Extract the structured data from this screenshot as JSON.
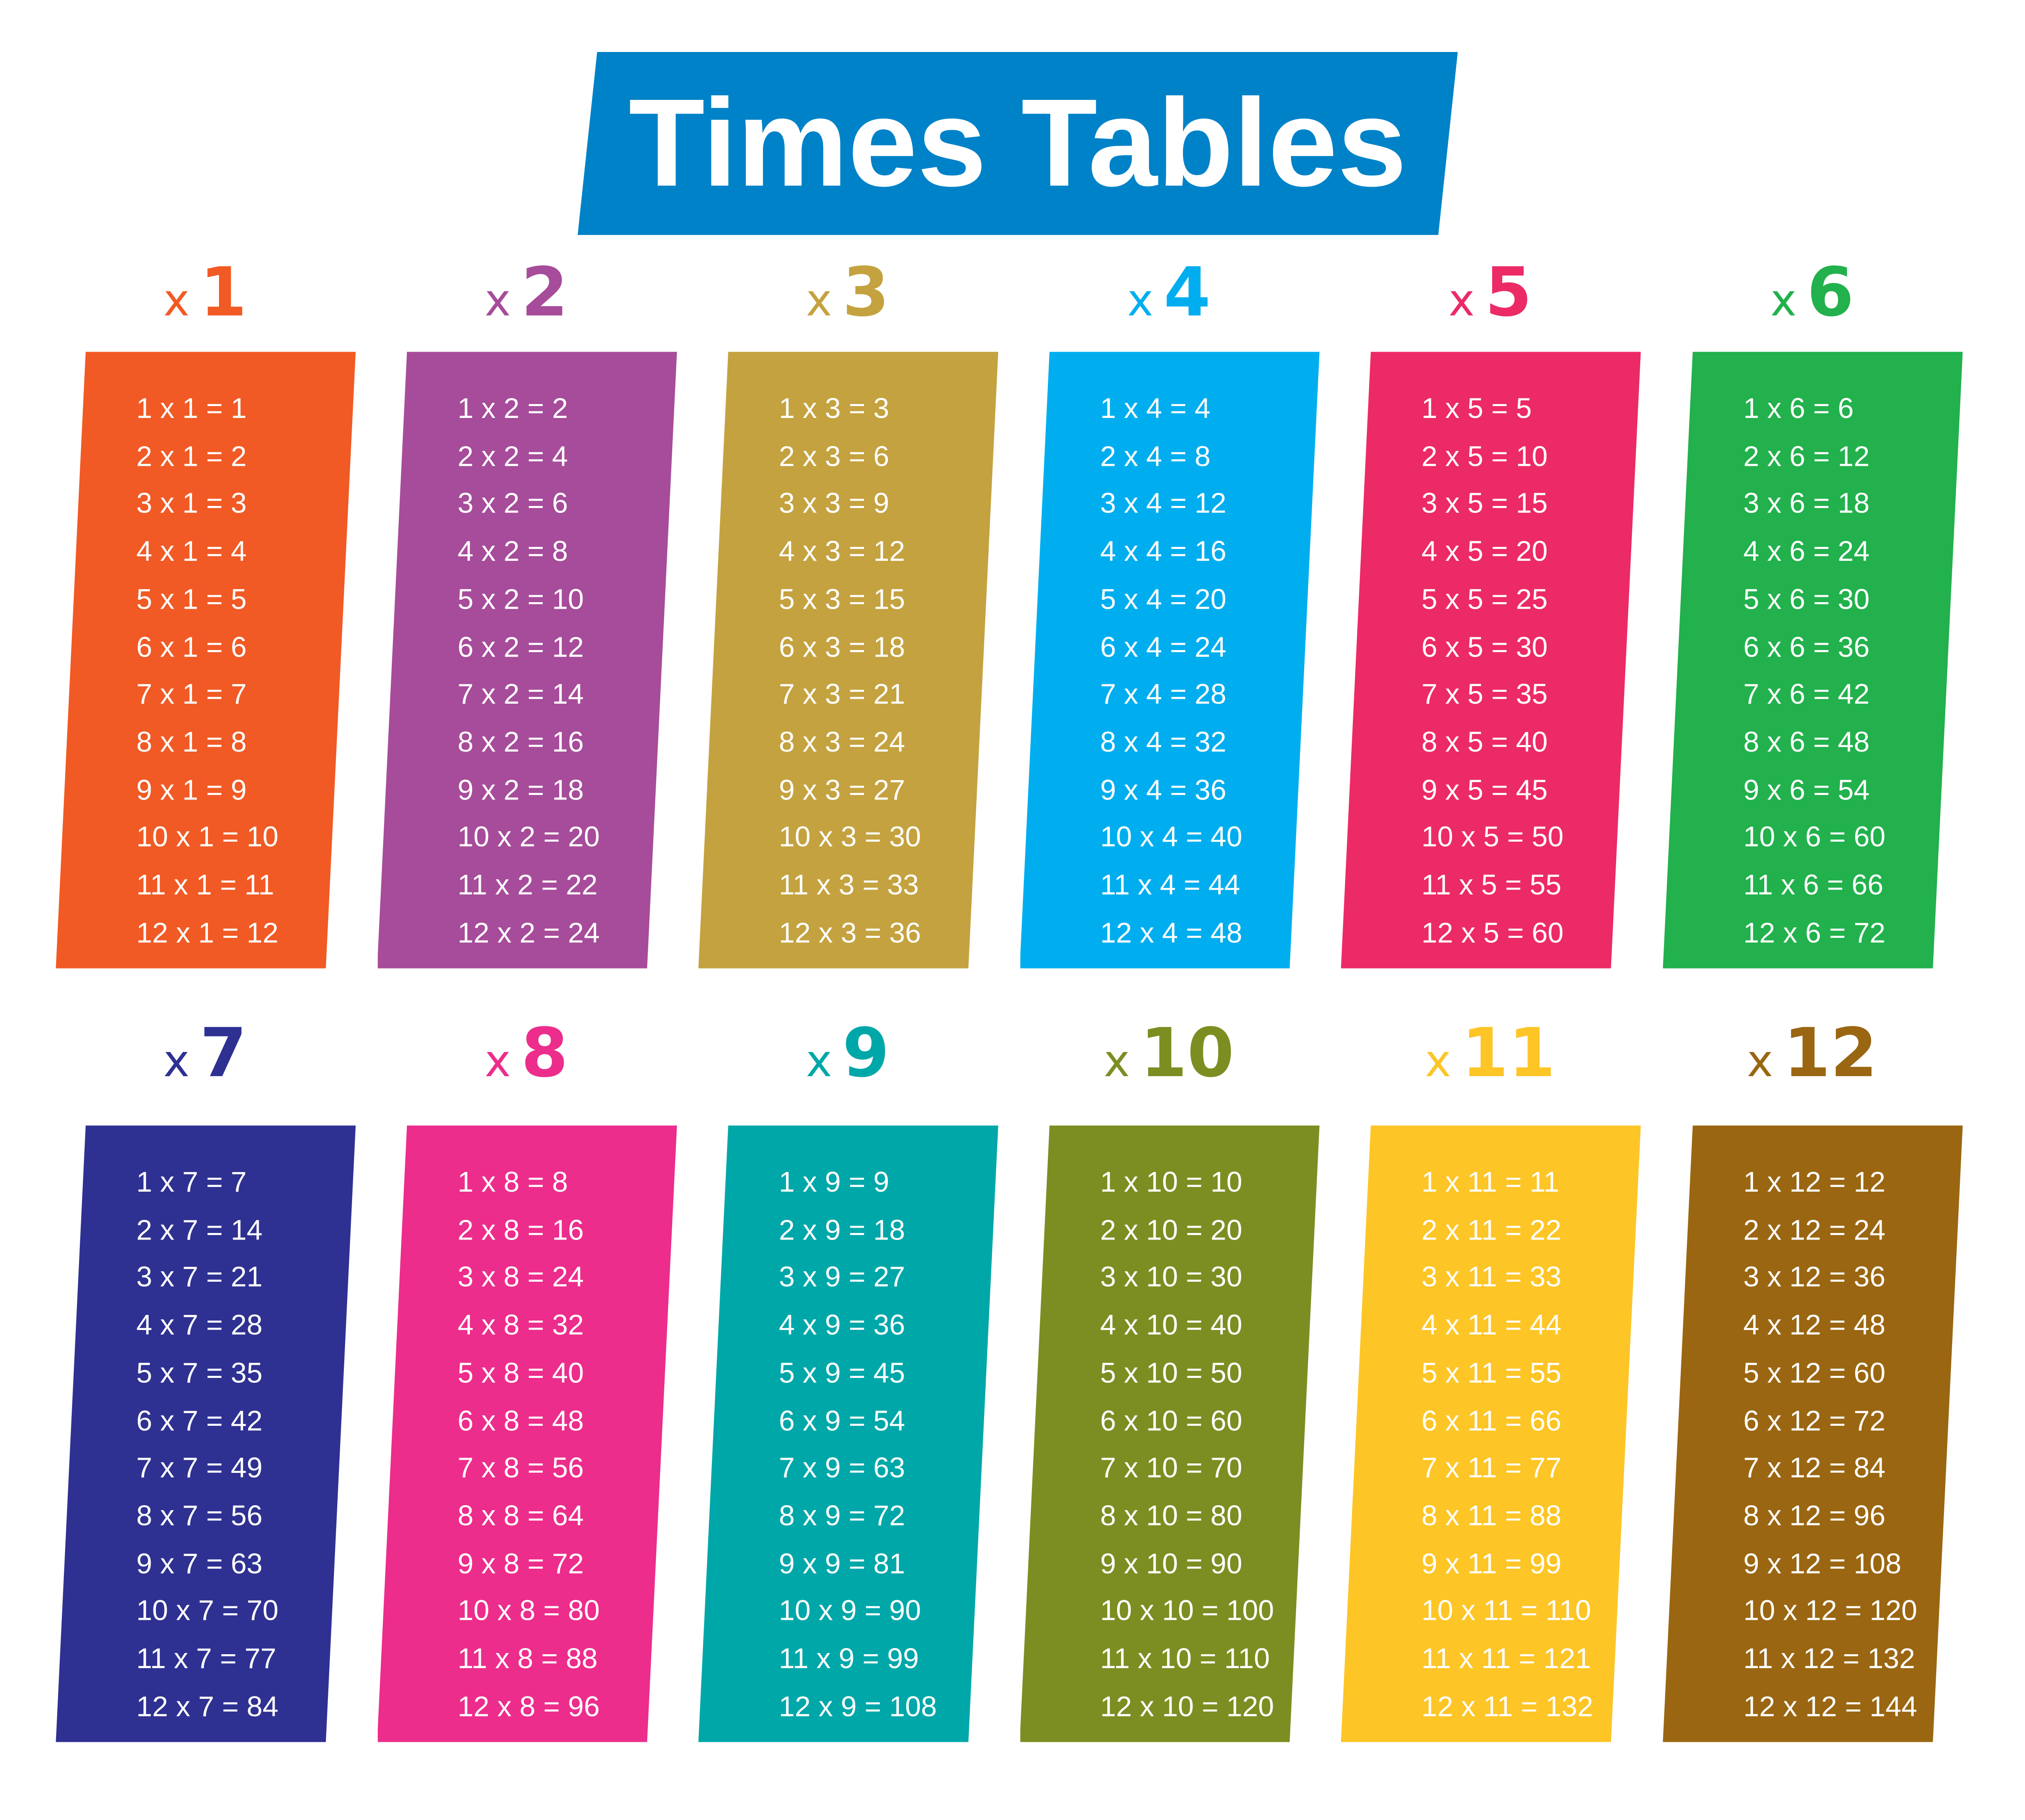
{
  "title": "Times Tables",
  "banner_color": "#0082C8",
  "tables": [
    {
      "x": "x",
      "n": "1",
      "color": "#F15A24",
      "rows": [
        "1 x 1 = 1",
        "2 x 1 = 2",
        "3 x 1 = 3",
        "4 x 1 = 4",
        "5 x 1 = 5",
        "6 x 1 = 6",
        "7 x 1 = 7",
        "8 x 1 = 8",
        "9 x 1 = 9",
        "10 x 1 = 10",
        "11 x 1 = 11",
        "12 x 1 = 12"
      ]
    },
    {
      "x": "x",
      "n": "2",
      "color": "#A64C9A",
      "rows": [
        "1 x 2 = 2",
        "2 x 2 = 4",
        "3 x 2 = 6",
        "4 x 2 = 8",
        "5 x 2 = 10",
        "6 x 2 = 12",
        "7 x 2 = 14",
        "8 x 2 = 16",
        "9 x 2 = 18",
        "10 x 2 = 20",
        "11 x 2 = 22",
        "12 x 2 = 24"
      ]
    },
    {
      "x": "x",
      "n": "3",
      "color": "#C4A23F",
      "rows": [
        "1 x 3 = 3",
        "2 x 3 = 6",
        "3 x 3 = 9",
        "4 x 3 = 12",
        "5 x 3 = 15",
        "6 x 3 = 18",
        "7 x 3 = 21",
        "8 x 3 = 24",
        "9 x 3 = 27",
        "10 x 3 = 30",
        "11 x 3 = 33",
        "12 x 3 = 36"
      ]
    },
    {
      "x": "x",
      "n": "4",
      "color": "#00AEEF",
      "rows": [
        "1 x 4 = 4",
        "2 x 4 = 8",
        "3 x 4 = 12",
        "4 x 4 = 16",
        "5 x 4 = 20",
        "6 x 4 = 24",
        "7 x 4 = 28",
        "8 x 4 = 32",
        "9 x 4 = 36",
        "10 x 4 = 40",
        "11 x 4 = 44",
        "12 x 4 = 48"
      ]
    },
    {
      "x": "x",
      "n": "5",
      "color": "#EC2A66",
      "rows": [
        "1 x 5 = 5",
        "2 x 5 = 10",
        "3 x 5 = 15",
        "4 x 5 = 20",
        "5 x 5 = 25",
        "6 x 5 = 30",
        "7 x 5 = 35",
        "8 x 5 = 40",
        "9 x 5 = 45",
        "10 x 5 = 50",
        "11 x 5 = 55",
        "12 x 5 = 60"
      ]
    },
    {
      "x": "x",
      "n": "6",
      "color": "#22B14C",
      "rows": [
        "1 x 6 = 6",
        "2 x 6 = 12",
        "3 x 6 = 18",
        "4 x 6 = 24",
        "5 x 6 = 30",
        "6 x 6 = 36",
        "7 x 6 = 42",
        "8 x 6 = 48",
        "9 x 6 = 54",
        "10 x 6 = 60",
        "11 x 6 = 66",
        "12 x 6 = 72"
      ]
    },
    {
      "x": "x",
      "n": "7",
      "color": "#2E3192",
      "rows": [
        "1 x 7 = 7",
        "2 x 7 = 14",
        "3 x 7 = 21",
        "4 x 7 = 28",
        "5 x 7 = 35",
        "6 x 7 = 42",
        "7 x 7 = 49",
        "8 x 7 = 56",
        "9 x 7 = 63",
        "10 x 7 = 70",
        "11 x 7 = 77",
        "12 x 7 = 84"
      ]
    },
    {
      "x": "x",
      "n": "8",
      "color": "#EC2D8C",
      "rows": [
        "1 x 8 = 8",
        "2 x 8 = 16",
        "3 x 8 = 24",
        "4 x 8 = 32",
        "5 x 8 = 40",
        "6 x 8 = 48",
        "7 x 8 = 56",
        "8 x 8 = 64",
        "9 x 8 = 72",
        "10 x 8 = 80",
        "11 x 8 = 88",
        "12 x 8 = 96"
      ]
    },
    {
      "x": "x",
      "n": "9",
      "color": "#00A7A9",
      "rows": [
        "1 x 9 = 9",
        "2 x 9 = 18",
        "3 x 9 = 27",
        "4 x 9 = 36",
        "5 x 9 = 45",
        "6 x 9 = 54",
        "7 x 9 = 63",
        "8 x 9 = 72",
        "9 x 9 = 81",
        "10 x 9 = 90",
        "11 x 9 = 99",
        "12 x 9 = 108"
      ]
    },
    {
      "x": "x",
      "n": "10",
      "color": "#7C8E22",
      "rows": [
        "1 x 10 = 10",
        "2 x 10 = 20",
        "3 x 10 = 30",
        "4 x 10 = 40",
        "5 x 10 = 50",
        "6 x 10 = 60",
        "7 x 10 = 70",
        "8 x 10 = 80",
        "9 x 10 = 90",
        "10 x 10 = 100",
        "11 x 10 = 110",
        "12 x 10 = 120"
      ]
    },
    {
      "x": "x",
      "n": "11",
      "color": "#FDC526",
      "rows": [
        "1 x 11 = 11",
        "2 x 11 = 22",
        "3 x 11 = 33",
        "4 x 11 = 44",
        "5 x 11 = 55",
        "6 x 11 = 66",
        "7 x 11 = 77",
        "8 x 11 = 88",
        "9 x 11 = 99",
        "10 x 11 = 110",
        "11 x 11 = 121",
        "12 x 11 = 132"
      ]
    },
    {
      "x": "x",
      "n": "12",
      "color": "#9A6611",
      "rows": [
        "1 x 12 = 12",
        "2 x 12 = 24",
        "3 x 12 = 36",
        "4 x 12 = 48",
        "5 x 12 = 60",
        "6 x 12 = 72",
        "7 x 12 = 84",
        "8 x 12 = 96",
        "9 x 12 = 108",
        "10 x 12 = 120",
        "11 x 12 = 132",
        "12 x 12 = 144"
      ]
    }
  ]
}
